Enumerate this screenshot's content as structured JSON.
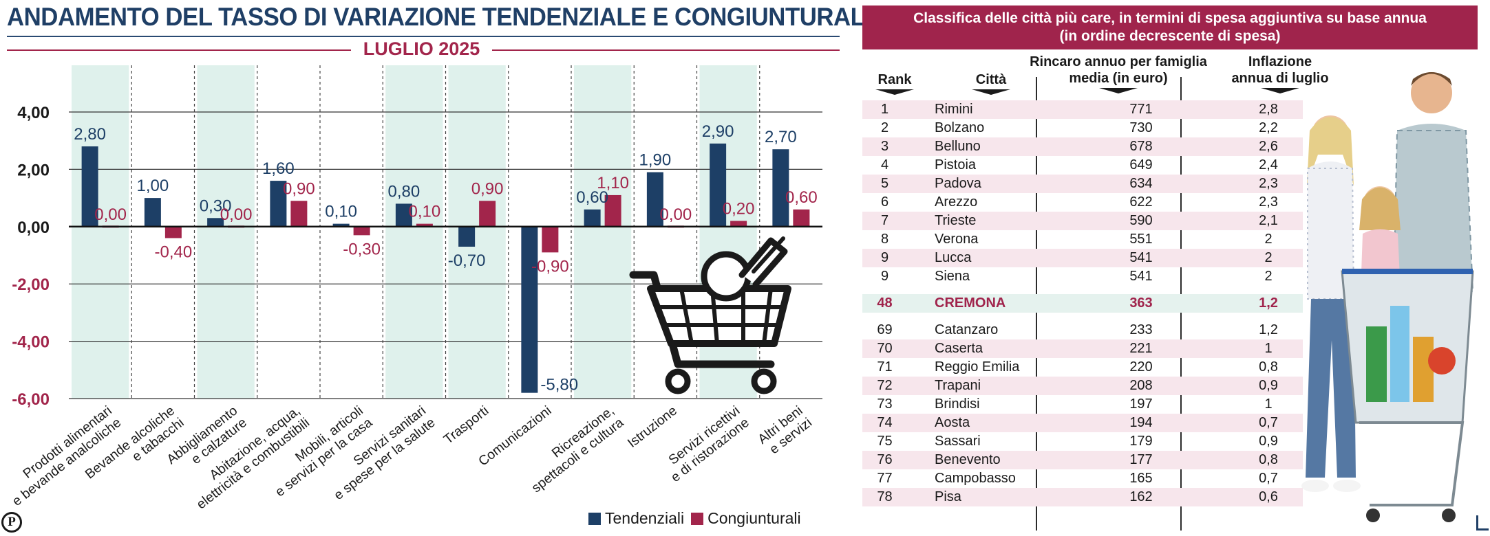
{
  "chart_title": "ANDAMENTO DEL TASSO DI VARIAZIONE TENDENZIALE E CONGIUNTURALE",
  "chart_subtitle": "LUGLIO 2025",
  "logo_letter": "P",
  "colors": {
    "tendenziali": "#1d3f66",
    "congiunturali": "#a2254b",
    "band": "#dff1ec",
    "neg_tick": "#a2254b",
    "banner": "#a0244c"
  },
  "chart_data": {
    "type": "bar",
    "categories": [
      [
        "Prodotti alimentari",
        "e bevande analcoliche"
      ],
      [
        "Bevande alcoliche",
        "e tabacchi"
      ],
      [
        "Abbigliamento",
        "e calzature"
      ],
      [
        "Abitazione, acqua,",
        "elettricità e combustibili"
      ],
      [
        "Mobili, articoli",
        "e servizi per la casa"
      ],
      [
        "Servizi sanitari",
        "e spese per la salute"
      ],
      [
        "Trasporti"
      ],
      [
        "Comunicazioni"
      ],
      [
        "Ricreazione,",
        "spettacoli e cultura"
      ],
      [
        "Istruzione"
      ],
      [
        "Servizi ricettivi",
        "e di ristorazione"
      ],
      [
        "Altri beni",
        "e servizi"
      ]
    ],
    "series": [
      {
        "name": "Tendenziali",
        "values": [
          2.8,
          1.0,
          0.3,
          1.6,
          0.1,
          0.8,
          -0.7,
          -5.8,
          0.6,
          1.9,
          2.9,
          2.7
        ],
        "labels": [
          "2,80",
          "1,00",
          "0,30",
          "1,60",
          "0,10",
          "0,80",
          "-0,70",
          "-5,80",
          "0,60",
          "1,90",
          "2,90",
          "2,70"
        ]
      },
      {
        "name": "Congiunturali",
        "values": [
          0.0,
          -0.4,
          0.0,
          0.9,
          -0.3,
          0.1,
          0.9,
          -0.9,
          1.1,
          0.0,
          0.2,
          0.6
        ],
        "labels": [
          "0,00",
          "-0,40",
          "0,00",
          "0,90",
          "-0,30",
          "0,10",
          "0,90",
          "-0,90",
          "1,10",
          "0,00",
          "0,20",
          "0,60"
        ]
      }
    ],
    "ylim": [
      -6,
      4
    ],
    "yticks": [
      4,
      2,
      0,
      -2,
      -4,
      -6
    ],
    "ytick_labels": [
      "4,00",
      "2,00",
      "0,00",
      "-2,00",
      "-4,00",
      "-6,00"
    ],
    "legend_position": "bottom-right",
    "shaded_categories": [
      0,
      2,
      5,
      6,
      8,
      10
    ],
    "grid": true
  },
  "legend": [
    {
      "label": "Tendenziali",
      "color": "#1d3f66"
    },
    {
      "label": "Congiunturali",
      "color": "#a2254b"
    }
  ],
  "table": {
    "banner_line1": "Classifica delle città più care, in termini di spesa aggiuntiva su base annua",
    "banner_line2": "(in ordine decrescente di spesa)",
    "headers": {
      "rank": "Rank",
      "city": "Città",
      "cost_line1": "Rincaro annuo per famiglia",
      "cost_line2": "media (in euro)",
      "infl_line1": "Inflazione",
      "infl_line2": "annua di luglio"
    },
    "rows": [
      {
        "rank": "1",
        "city": "Rimini",
        "cost": "771",
        "infl": "2,8"
      },
      {
        "rank": "2",
        "city": "Bolzano",
        "cost": "730",
        "infl": "2,2"
      },
      {
        "rank": "3",
        "city": "Belluno",
        "cost": "678",
        "infl": "2,6"
      },
      {
        "rank": "4",
        "city": "Pistoia",
        "cost": "649",
        "infl": "2,4"
      },
      {
        "rank": "5",
        "city": "Padova",
        "cost": "634",
        "infl": "2,3"
      },
      {
        "rank": "6",
        "city": "Arezzo",
        "cost": "622",
        "infl": "2,3"
      },
      {
        "rank": "7",
        "city": "Trieste",
        "cost": "590",
        "infl": "2,1"
      },
      {
        "rank": "8",
        "city": "Verona",
        "cost": "551",
        "infl": "2"
      },
      {
        "rank": "9",
        "city": "Lucca",
        "cost": "541",
        "infl": "2"
      },
      {
        "rank": "9",
        "city": "Siena",
        "cost": "541",
        "infl": "2"
      },
      {
        "rank": "48",
        "city": "CREMONA",
        "cost": "363",
        "infl": "1,2",
        "highlight": true
      },
      {
        "rank": "69",
        "city": "Catanzaro",
        "cost": "233",
        "infl": "1,2"
      },
      {
        "rank": "70",
        "city": "Caserta",
        "cost": "221",
        "infl": "1"
      },
      {
        "rank": "71",
        "city": "Reggio Emilia",
        "cost": "220",
        "infl": "0,8"
      },
      {
        "rank": "72",
        "city": "Trapani",
        "cost": "208",
        "infl": "0,9"
      },
      {
        "rank": "73",
        "city": "Brindisi",
        "cost": "197",
        "infl": "1"
      },
      {
        "rank": "74",
        "city": "Aosta",
        "cost": "194",
        "infl": "0,7"
      },
      {
        "rank": "75",
        "city": "Sassari",
        "cost": "179",
        "infl": "0,9"
      },
      {
        "rank": "76",
        "city": "Benevento",
        "cost": "177",
        "infl": "0,8"
      },
      {
        "rank": "77",
        "city": "Campobasso",
        "cost": "165",
        "infl": "0,7"
      },
      {
        "rank": "78",
        "city": "Pisa",
        "cost": "162",
        "infl": "0,6"
      }
    ]
  }
}
